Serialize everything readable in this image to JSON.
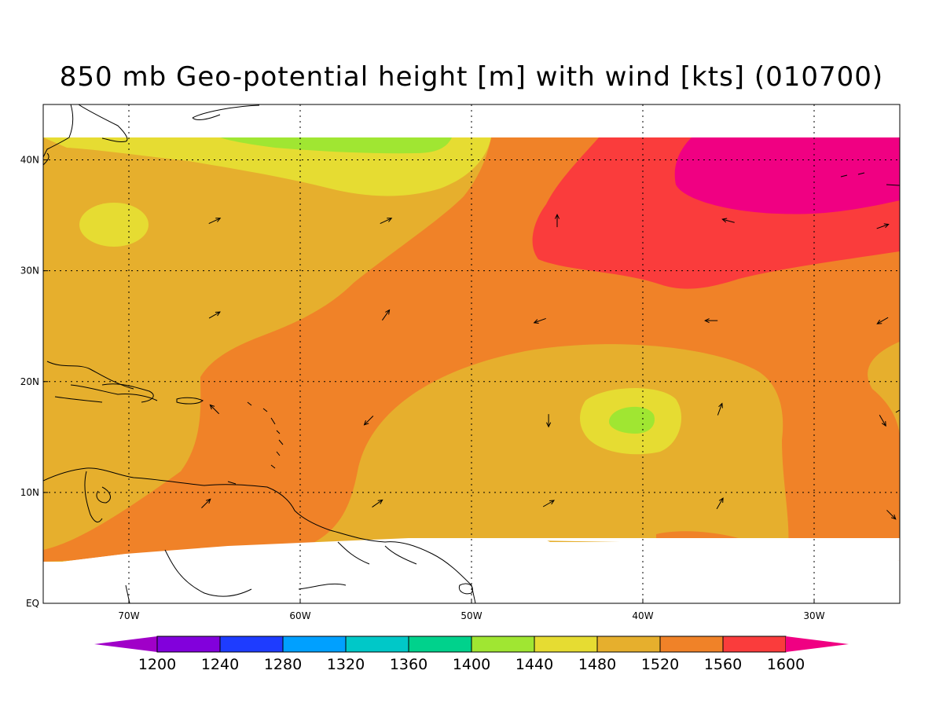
{
  "title": "850 mb Geo-potential height [m] with wind [kts] (010700)",
  "map": {
    "lon_range": [
      -75,
      -25
    ],
    "lat_range": [
      0,
      45
    ],
    "data_lat_range": [
      6,
      42
    ],
    "lon_ticks": [
      {
        "value": -70,
        "label": "70W"
      },
      {
        "value": -60,
        "label": "60W"
      },
      {
        "value": -50,
        "label": "50W"
      },
      {
        "value": -40,
        "label": "40W"
      },
      {
        "value": -30,
        "label": "30W"
      }
    ],
    "lat_ticks": [
      {
        "value": 0,
        "label": "EQ"
      },
      {
        "value": 10,
        "label": "10N"
      },
      {
        "value": 20,
        "label": "20N"
      },
      {
        "value": 30,
        "label": "30N"
      },
      {
        "value": 40,
        "label": "40N"
      }
    ],
    "grid": true
  },
  "colorbar": {
    "levels": [
      "1200",
      "1240",
      "1280",
      "1320",
      "1360",
      "1400",
      "1440",
      "1480",
      "1520",
      "1560",
      "1600"
    ],
    "colors": [
      "#a000c8",
      "#8200dc",
      "#1e3cff",
      "#00a0ff",
      "#00c8c8",
      "#00d28c",
      "#a0e632",
      "#e6dc32",
      "#e6af2d",
      "#f08228",
      "#fa3c3c",
      "#f00082"
    ]
  },
  "wind_vectors": [
    {
      "lon": -65,
      "lat": 34.5,
      "dir": 65
    },
    {
      "lon": -55,
      "lat": 34.5,
      "dir": 65
    },
    {
      "lon": -45,
      "lat": 34.5,
      "dir": 0
    },
    {
      "lon": -35,
      "lat": 34.5,
      "dir": 285
    },
    {
      "lon": -26,
      "lat": 34.0,
      "dir": 70
    },
    {
      "lon": -65,
      "lat": 26.0,
      "dir": 60
    },
    {
      "lon": -55,
      "lat": 26.0,
      "dir": 35
    },
    {
      "lon": -46,
      "lat": 25.5,
      "dir": 250
    },
    {
      "lon": -36,
      "lat": 25.5,
      "dir": 270
    },
    {
      "lon": -26,
      "lat": 25.5,
      "dir": 240
    },
    {
      "lon": -65,
      "lat": 17.5,
      "dir": 315
    },
    {
      "lon": -56,
      "lat": 16.5,
      "dir": 225
    },
    {
      "lon": -45.5,
      "lat": 16.5,
      "dir": 180
    },
    {
      "lon": -35.5,
      "lat": 17.5,
      "dir": 20
    },
    {
      "lon": -26,
      "lat": 16.5,
      "dir": 150
    },
    {
      "lon": -65.5,
      "lat": 9.0,
      "dir": 45
    },
    {
      "lon": -55.5,
      "lat": 9.0,
      "dir": 55
    },
    {
      "lon": -45.5,
      "lat": 9.0,
      "dir": 60
    },
    {
      "lon": -35.5,
      "lat": 9.0,
      "dir": 30
    },
    {
      "lon": -25.5,
      "lat": 8.0,
      "dir": 135
    }
  ]
}
